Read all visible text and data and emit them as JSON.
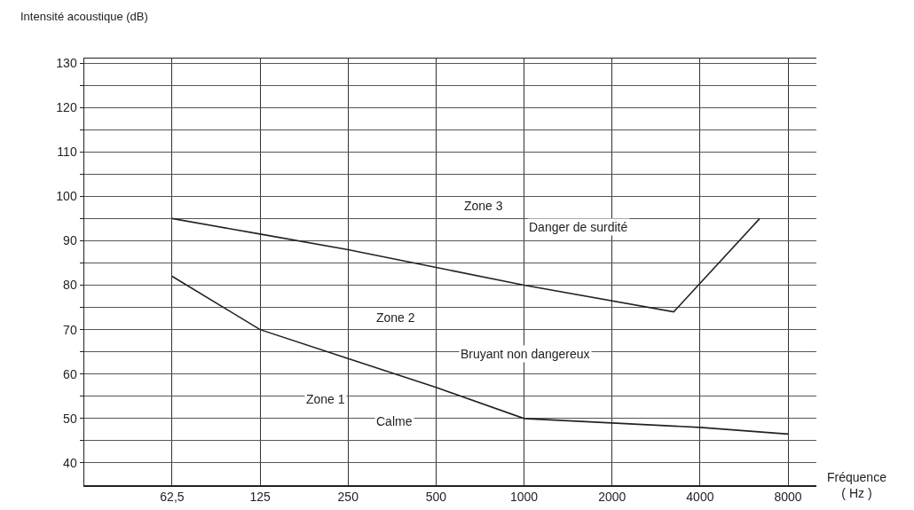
{
  "chart_data": {
    "type": "line",
    "xlabel": "Fréquence\n( Hz )",
    "ylabel": "Intensité acoustique (dB)",
    "log": "x",
    "xlim": [
      31.3,
      10000
    ],
    "xticks": [
      {
        "value": 62.5,
        "label": "62,5"
      },
      125,
      250,
      500,
      1000,
      2000,
      4000,
      8000
    ],
    "ylim": [
      35,
      131
    ],
    "yticks": [
      40,
      {
        "value": 45,
        "label": null
      },
      50,
      {
        "value": 55,
        "label": null
      },
      60,
      {
        "value": 65,
        "label": null
      },
      70,
      {
        "value": 75,
        "label": null
      },
      80,
      {
        "value": 85,
        "label": null
      },
      90,
      {
        "value": 95,
        "label": null
      },
      100,
      {
        "value": 105,
        "label": null
      },
      110,
      {
        "value": 115,
        "label": null
      },
      120,
      {
        "value": 125,
        "label": null
      },
      130
    ],
    "grid": true,
    "marker": "none",
    "line_style": "solid",
    "series": [
      {
        "color": "#222222",
        "x": [
          62.5,
          125,
          250,
          500,
          1000,
          3250,
          6400
        ],
        "values": [
          95,
          91.5,
          88,
          84,
          80,
          74,
          95
        ]
      },
      {
        "color": "#222222",
        "x": [
          62.5,
          125,
          250,
          500,
          1000,
          4000,
          8000
        ],
        "values": [
          82,
          70,
          63.5,
          57,
          50,
          48,
          46.5
        ]
      }
    ],
    "annotations": [
      "Zone 3",
      "Danger de surdité",
      "Zone 2",
      "Bruyant non dangereux",
      "Zone 1",
      "Calme"
    ]
  }
}
